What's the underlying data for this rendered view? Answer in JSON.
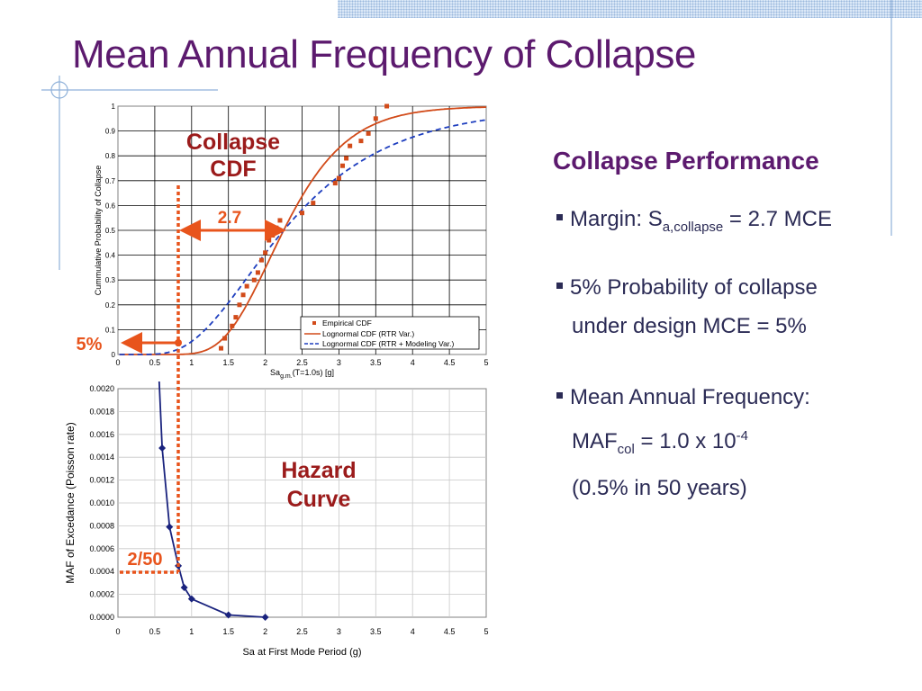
{
  "slide": {
    "title": "Mean Annual Frequency of Collapse",
    "heading": "Collapse Performance",
    "bullet1": {
      "text": "Margin: S",
      "sub": "a,collapse",
      "rest": " = 2.7 MCE"
    },
    "bullet2": {
      "line1": "5% Probability of collapse",
      "line2": "under design MCE = 5%"
    },
    "bullet3": {
      "line1": "Mean Annual Frequency:",
      "line2_prefix": "MAF",
      "line2_sub": "col",
      "line2_mid": " = 1.0 x 10",
      "line2_sup": "-4",
      "line3": "(0.5% in 50 years)"
    }
  },
  "annotations": {
    "collapse_cdf_line1": "Collapse",
    "collapse_cdf_line2": "CDF",
    "margin_label": "2.7",
    "pct_label": "5%",
    "hazard_line1": "Hazard",
    "hazard_line2": "Curve",
    "hazard_level": "2/50"
  },
  "colors": {
    "accent": "#e8541c",
    "title": "#5c1a6e",
    "hazard": "#1a237e",
    "annotation_red": "#9b1b1b"
  },
  "chart_data": [
    {
      "type": "line",
      "xlabel": "Sa",
      "xlabel_sub": "g.m.",
      "xlabel_rest": "(T=1.0s) [g]",
      "ylabel": "Cummulative Probability of Collapse",
      "xlim": [
        0,
        5
      ],
      "ylim": [
        0,
        1
      ],
      "x_ticks": [
        "0",
        "0.5",
        "1",
        "1.5",
        "2",
        "2.5",
        "3",
        "3.5",
        "4",
        "4.5",
        "5"
      ],
      "y_ticks": [
        "0",
        "0.1",
        "0.2",
        "0.3",
        "0.4",
        "0.5",
        "0.6",
        "0.7",
        "0.8",
        "0.9",
        "1"
      ],
      "grid": true,
      "legend": "bottom-right",
      "series": [
        {
          "name": "Empirical CDF",
          "style": "points",
          "color": "#d24b1a",
          "x": [
            1.4,
            1.45,
            1.55,
            1.6,
            1.65,
            1.7,
            1.75,
            1.85,
            1.9,
            1.95,
            2.0,
            2.05,
            2.1,
            2.15,
            2.2,
            2.5,
            2.65,
            2.95,
            3.0,
            3.05,
            3.1,
            3.15,
            3.3,
            3.4,
            3.5,
            3.65
          ],
          "y": [
            0.025,
            0.065,
            0.115,
            0.15,
            0.2,
            0.24,
            0.275,
            0.3,
            0.33,
            0.38,
            0.41,
            0.46,
            0.48,
            0.51,
            0.54,
            0.57,
            0.61,
            0.69,
            0.71,
            0.76,
            0.79,
            0.84,
            0.86,
            0.89,
            0.95,
            1.0
          ]
        },
        {
          "name": "Lognormal CDF (RTR Var.)",
          "style": "solid",
          "color": "#d24b1a",
          "median": 2.25,
          "beta": 0.3
        },
        {
          "name": "Lognormal CDF (RTR + Modeling Var.)",
          "style": "dashed",
          "color": "#1f3fbf",
          "median": 2.25,
          "beta": 0.5
        }
      ]
    },
    {
      "type": "line",
      "xlabel": "Sa at First Mode Period (g)",
      "ylabel": "MAF of Excedance (Poisson rate)",
      "xlim": [
        0,
        5
      ],
      "ylim": [
        0,
        0.002
      ],
      "x_ticks": [
        "0",
        "0.5",
        "1",
        "1.5",
        "2",
        "2.5",
        "3",
        "3.5",
        "4",
        "4.5",
        "5"
      ],
      "y_ticks": [
        "0.0000",
        "0.0002",
        "0.0004",
        "0.0006",
        "0.0008",
        "0.0010",
        "0.0012",
        "0.0014",
        "0.0016",
        "0.0018",
        "0.0020"
      ],
      "grid": true,
      "series": [
        {
          "color": "#1a237e",
          "x": [
            0.56,
            0.6,
            0.7,
            0.82,
            0.9,
            1.0,
            1.5,
            2.0
          ],
          "y": [
            0.0021,
            0.00148,
            0.00079,
            0.00045,
            0.00026,
            0.00016,
            2e-05,
            0.0
          ]
        }
      ]
    }
  ]
}
